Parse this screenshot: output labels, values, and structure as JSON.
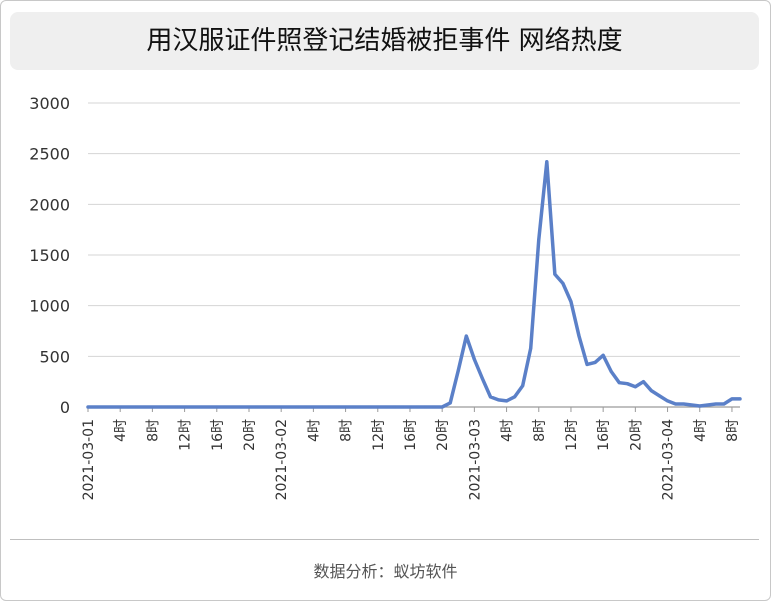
{
  "page": {
    "title": "用汉服证件照登记结婚被拒事件 网络热度",
    "source": "数据分析：蚁坊软件"
  },
  "chart_data": {
    "type": "line",
    "title": "用汉服证件照登记结婚被拒事件 网络热度",
    "xlabel": "",
    "ylabel": "",
    "ylim": [
      0,
      3000
    ],
    "yticks": [
      "0",
      "500",
      "1000",
      "1500",
      "2000",
      "2500",
      "3000"
    ],
    "grid": true,
    "legend": "none",
    "line_color": "#5b80c8",
    "x_tick_labels": [
      {
        "i": 0,
        "label": "2021-03-01"
      },
      {
        "i": 4,
        "label": "4时"
      },
      {
        "i": 8,
        "label": "8时"
      },
      {
        "i": 12,
        "label": "12时"
      },
      {
        "i": 16,
        "label": "16时"
      },
      {
        "i": 20,
        "label": "20时"
      },
      {
        "i": 24,
        "label": "2021-03-02"
      },
      {
        "i": 28,
        "label": "4时"
      },
      {
        "i": 32,
        "label": "8时"
      },
      {
        "i": 36,
        "label": "12时"
      },
      {
        "i": 40,
        "label": "16时"
      },
      {
        "i": 44,
        "label": "20时"
      },
      {
        "i": 48,
        "label": "2021-03-03"
      },
      {
        "i": 52,
        "label": "4时"
      },
      {
        "i": 56,
        "label": "8时"
      },
      {
        "i": 60,
        "label": "12时"
      },
      {
        "i": 64,
        "label": "16时"
      },
      {
        "i": 68,
        "label": "20时"
      },
      {
        "i": 72,
        "label": "2021-03-04"
      },
      {
        "i": 76,
        "label": "4时"
      },
      {
        "i": 80,
        "label": "8时"
      }
    ],
    "series": [
      {
        "values": [
          0,
          0,
          0,
          0,
          0,
          0,
          0,
          0,
          0,
          0,
          0,
          0,
          0,
          0,
          0,
          0,
          0,
          0,
          0,
          0,
          0,
          0,
          0,
          0,
          0,
          0,
          0,
          0,
          0,
          0,
          0,
          0,
          0,
          0,
          0,
          0,
          0,
          0,
          0,
          0,
          0,
          0,
          0,
          0,
          0,
          40,
          360,
          700,
          470,
          280,
          100,
          70,
          60,
          100,
          210,
          580,
          1650,
          2420,
          1310,
          1220,
          1040,
          700,
          420,
          440,
          510,
          350,
          240,
          230,
          200,
          250,
          160,
          110,
          60,
          30,
          30,
          20,
          10,
          20,
          30,
          30,
          80,
          80
        ]
      }
    ]
  }
}
